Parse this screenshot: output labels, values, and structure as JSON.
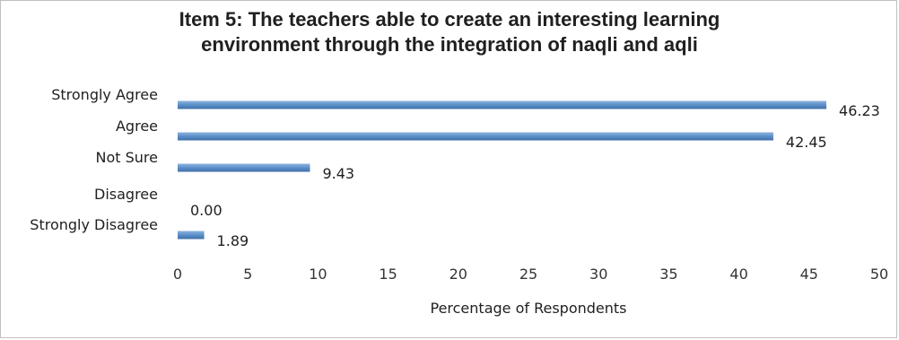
{
  "chart_data": {
    "type": "bar",
    "orientation": "horizontal",
    "title_lines": [
      "Item 5:  The teachers able to create an interesting learning",
      "environment through the integration of naqli and aqli"
    ],
    "categories": [
      "Strongly Agree",
      "Agree",
      "Not Sure",
      "Disagree",
      "Strongly Disagree"
    ],
    "values": [
      46.23,
      42.45,
      9.43,
      0.0,
      1.89
    ],
    "value_labels": [
      "46.23",
      "42.45",
      "9.43",
      "0.00",
      "1.89"
    ],
    "xlabel": "Percentage of Respondents",
    "ylabel": "",
    "xlim": [
      0,
      50
    ],
    "xticks": [
      0,
      5,
      10,
      15,
      20,
      25,
      30,
      35,
      40,
      45,
      50
    ],
    "grid": false,
    "legend": "none",
    "bar_color": "#5b8fc9"
  }
}
